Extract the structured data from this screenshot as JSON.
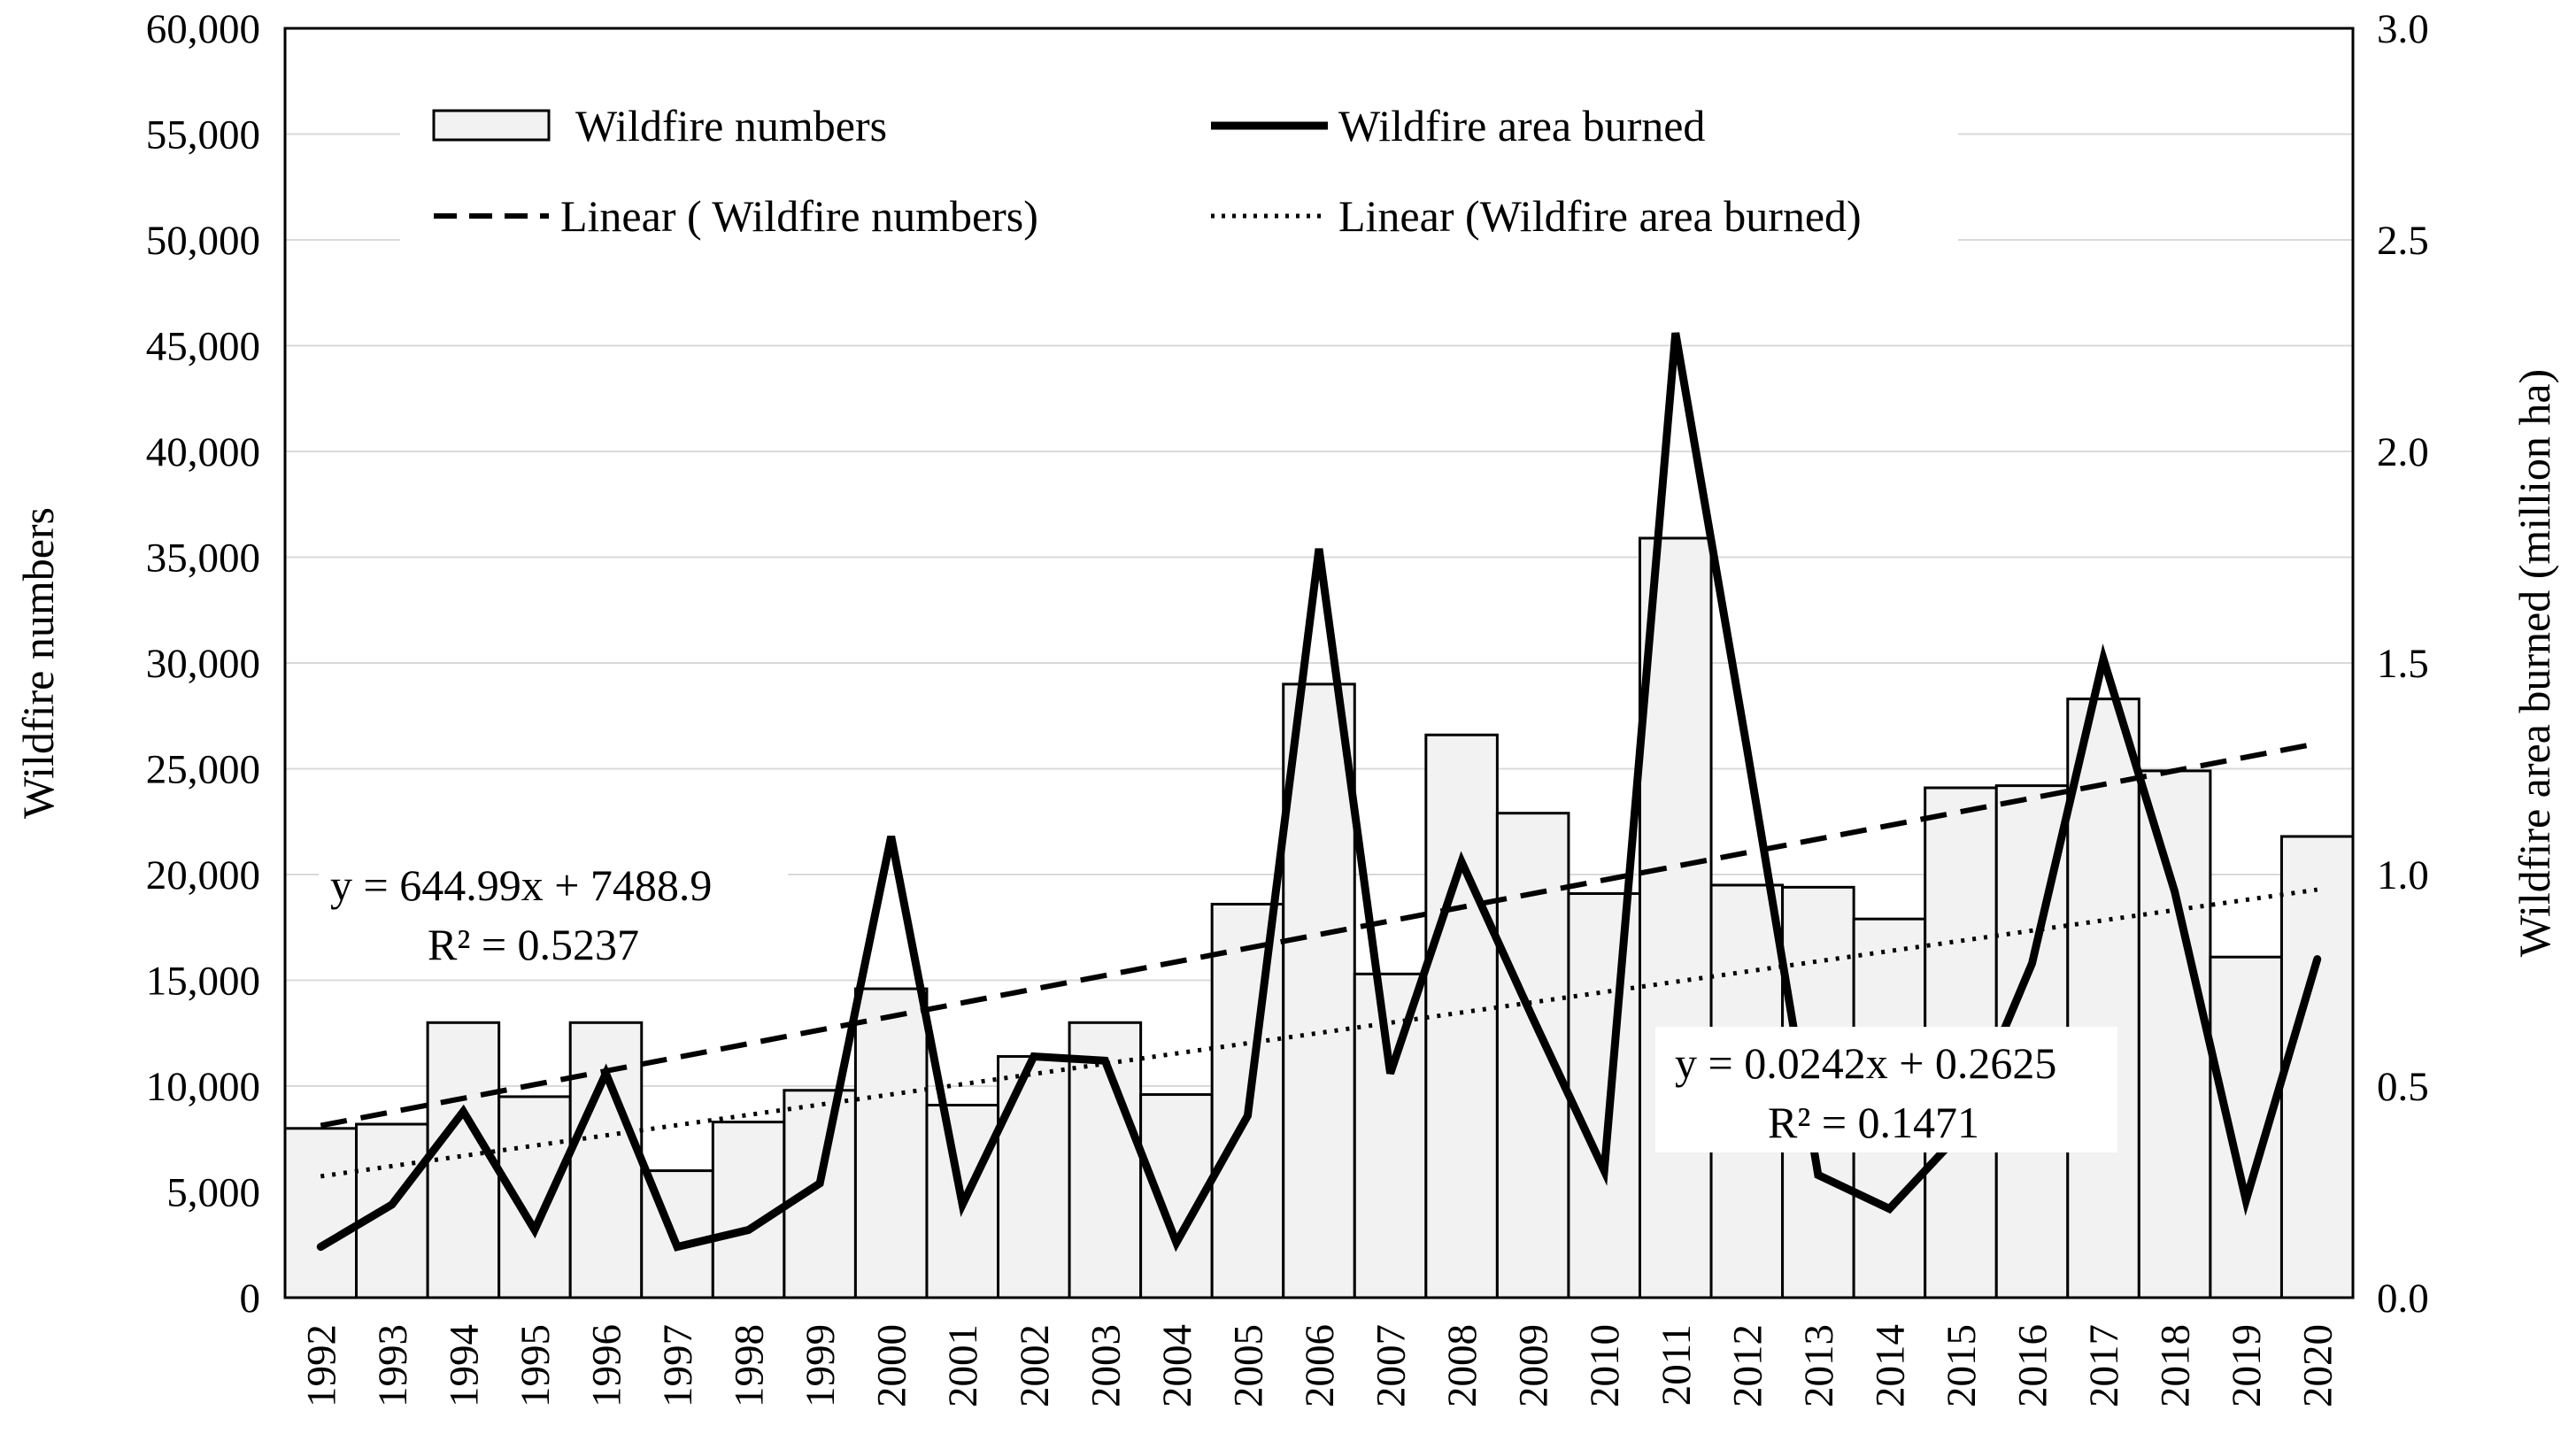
{
  "chart_data": {
    "type": "bar",
    "title": "",
    "xlabel": "",
    "ylabel": "Wildfire numbers",
    "y2label": "Wildfire area burned (million ha)",
    "ylim": [
      0,
      60000
    ],
    "y2lim": [
      0,
      3.0
    ],
    "yticks": [
      "0",
      "5,000",
      "10,000",
      "15,000",
      "20,000",
      "25,000",
      "30,000",
      "35,000",
      "40,000",
      "45,000",
      "50,000",
      "55,000",
      "60,000"
    ],
    "y2ticks": [
      "0.0",
      "0.5",
      "1.0",
      "1.5",
      "2.0",
      "2.5",
      "3.0"
    ],
    "categories": [
      "1992",
      "1993",
      "1994",
      "1995",
      "1996",
      "1997",
      "1998",
      "1999",
      "2000",
      "2001",
      "2002",
      "2003",
      "2004",
      "2005",
      "2006",
      "2007",
      "2008",
      "2009",
      "2010",
      "2011",
      "2012",
      "2013",
      "2014",
      "2015",
      "2016",
      "2017",
      "2018",
      "2019",
      "2020"
    ],
    "grid": true,
    "legend_position": "top",
    "series": [
      {
        "name": "Wildfire numbers",
        "type": "bar",
        "axis": "left",
        "color": "#f2f2f2",
        "values": [
          8000,
          8200,
          13000,
          9500,
          13000,
          6000,
          8300,
          9800,
          14600,
          9100,
          11400,
          13000,
          9600,
          18600,
          29000,
          15300,
          26600,
          22900,
          19100,
          35900,
          19500,
          19400,
          17900,
          24100,
          24200,
          28300,
          24900,
          16100,
          21800
        ]
      },
      {
        "name": "Wildfire area burned",
        "type": "line",
        "axis": "right",
        "color": "#000000",
        "values": [
          0.12,
          0.22,
          0.44,
          0.16,
          0.53,
          0.12,
          0.16,
          0.27,
          1.09,
          0.22,
          0.57,
          0.56,
          0.13,
          0.43,
          1.77,
          0.53,
          1.03,
          0.66,
          0.3,
          2.28,
          1.3,
          0.29,
          0.21,
          0.39,
          0.79,
          1.51,
          0.96,
          0.23,
          0.8
        ]
      },
      {
        "name": "Linear ( Wildfire numbers)",
        "type": "trendline",
        "axis": "left",
        "style": "dashed",
        "slope": 644.99,
        "intercept": 7488.9
      },
      {
        "name": "Linear (Wildfire area burned)",
        "type": "trendline",
        "axis": "right",
        "style": "dotted",
        "slope": 0.0242,
        "intercept": 0.2625
      }
    ],
    "annotations": [
      {
        "line1": "y = 644.99x + 7488.9",
        "line2": "R² = 0.5237"
      },
      {
        "line1": "y = 0.0242x + 0.2625",
        "line2": "R² = 0.1471"
      }
    ]
  }
}
